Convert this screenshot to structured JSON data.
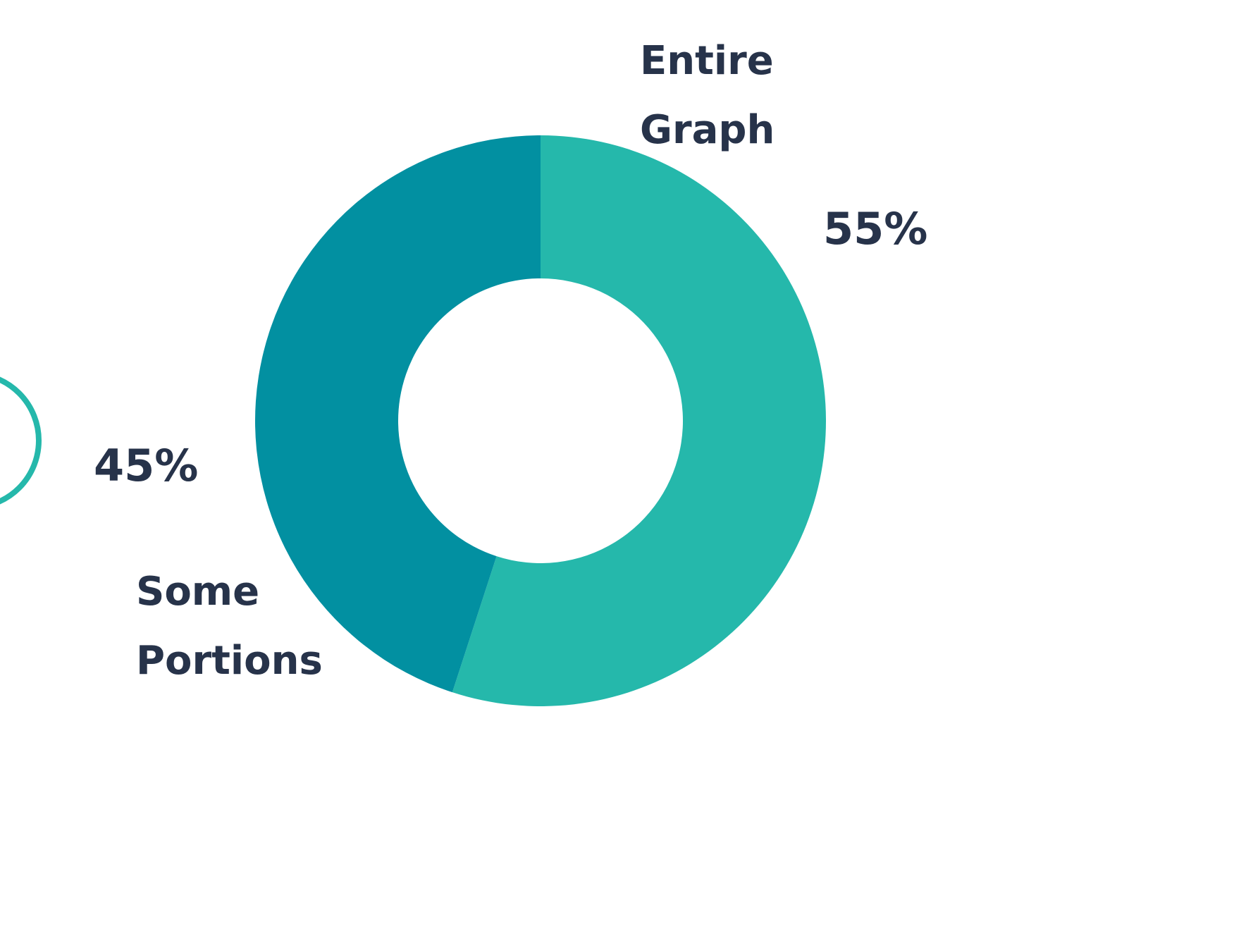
{
  "chart_data": {
    "type": "pie",
    "donut": true,
    "slices": [
      {
        "label": "Entire Graph",
        "value": 55,
        "value_label": "55%",
        "color": "#25b8ab"
      },
      {
        "label": "Some Portions",
        "value": 45,
        "value_label": "45%",
        "color": "#0290a1"
      }
    ]
  }
}
